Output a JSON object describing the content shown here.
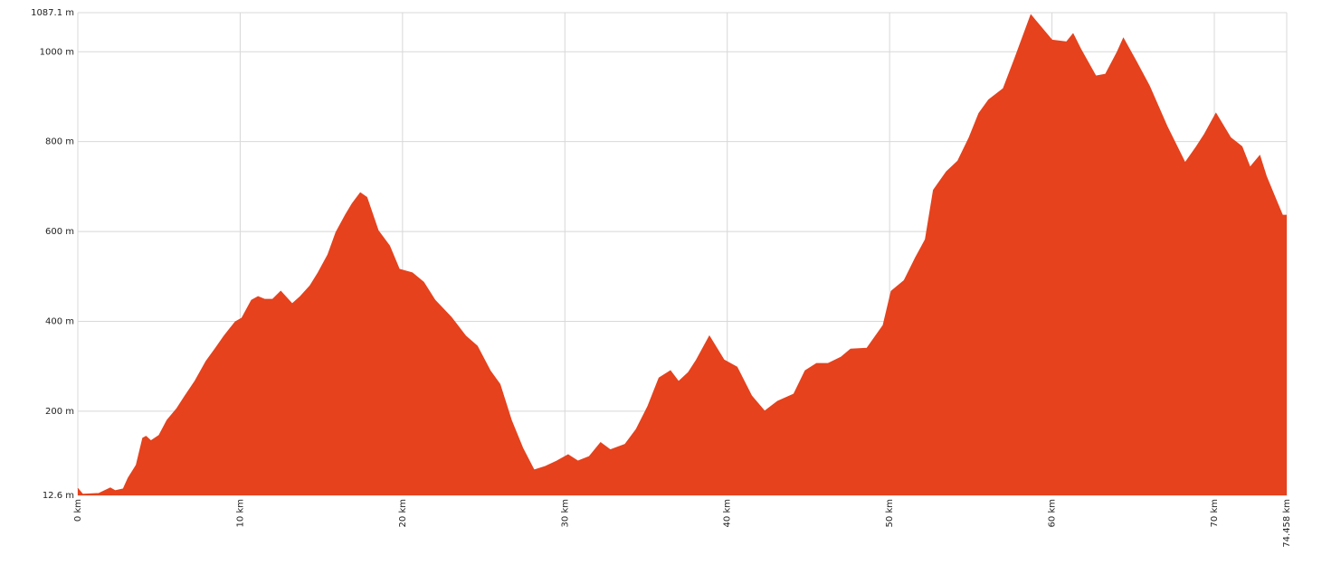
{
  "chart_data": {
    "type": "area",
    "color": "#e5421d",
    "grid": true,
    "x": [
      0,
      0.3,
      1.3,
      2.0,
      2.3,
      2.8,
      3.1,
      3.6,
      4.0,
      4.2,
      4.5,
      5.0,
      5.5,
      6.1,
      6.6,
      7.2,
      7.9,
      8.5,
      9.0,
      9.7,
      10.1,
      10.7,
      11.1,
      11.5,
      12.0,
      12.5,
      13.2,
      13.7,
      14.3,
      14.8,
      15.4,
      15.9,
      16.5,
      16.9,
      17.4,
      17.8,
      18.5,
      19.2,
      19.8,
      20.6,
      21.3,
      22.0,
      23.0,
      23.9,
      24.6,
      25.4,
      26.0,
      26.7,
      27.4,
      28.1,
      28.8,
      29.5,
      30.2,
      30.8,
      31.5,
      32.2,
      32.8,
      33.7,
      34.4,
      35.1,
      35.8,
      36.5,
      37.0,
      37.6,
      38.1,
      38.9,
      39.8,
      40.6,
      41.5,
      42.3,
      43.1,
      44.1,
      44.8,
      45.5,
      46.2,
      47.0,
      47.6,
      48.6,
      49.6,
      50.1,
      50.9,
      51.6,
      52.2,
      52.7,
      53.5,
      54.2,
      54.9,
      55.5,
      56.1,
      57.0,
      57.7,
      58.7,
      60.0,
      60.9,
      61.3,
      61.8,
      62.7,
      63.3,
      64.0,
      64.4,
      65.2,
      66.0,
      67.1,
      68.2,
      68.9,
      69.4,
      70.1,
      71.0,
      71.7,
      72.2,
      72.8,
      73.2,
      73.9,
      74.2,
      74.458
    ],
    "values": [
      28,
      15,
      17,
      29,
      23,
      27,
      51,
      80,
      140,
      144,
      134,
      146,
      180,
      206,
      234,
      266,
      311,
      341,
      367,
      399,
      407,
      447,
      455,
      449,
      449,
      467,
      439,
      455,
      479,
      508,
      548,
      598,
      638,
      662,
      686,
      676,
      602,
      568,
      516,
      508,
      487,
      447,
      409,
      367,
      345,
      290,
      260,
      180,
      118,
      69,
      77,
      89,
      103,
      89,
      99,
      130,
      114,
      126,
      160,
      210,
      274,
      290,
      266,
      286,
      314,
      367,
      314,
      298,
      234,
      200,
      222,
      238,
      290,
      306,
      306,
      320,
      338,
      340,
      391,
      467,
      491,
      542,
      582,
      692,
      733,
      757,
      809,
      863,
      893,
      918,
      984,
      1082,
      1026,
      1022,
      1040,
      1004,
      946,
      950,
      998,
      1030,
      978,
      924,
      833,
      753,
      789,
      817,
      863,
      809,
      789,
      743,
      769,
      723,
      662,
      636,
      636
    ],
    "xlim": [
      0,
      74.458
    ],
    "xticks": [
      {
        "value": 0,
        "label": "0 km"
      },
      {
        "value": 10,
        "label": "10 km"
      },
      {
        "value": 20,
        "label": "20 km"
      },
      {
        "value": 30,
        "label": "30 km"
      },
      {
        "value": 40,
        "label": "40 km"
      },
      {
        "value": 50,
        "label": "50 km"
      },
      {
        "value": 60,
        "label": "60 km"
      },
      {
        "value": 70,
        "label": "70 km"
      },
      {
        "value": 74.458,
        "label": "74.458 km"
      }
    ],
    "ylim": [
      12.6,
      1087.1
    ],
    "yticks": [
      {
        "value": 12.6,
        "label": "12.6 m"
      },
      {
        "value": 200,
        "label": "200 m"
      },
      {
        "value": 400,
        "label": "400 m"
      },
      {
        "value": 600,
        "label": "600 m"
      },
      {
        "value": 800,
        "label": "800 m"
      },
      {
        "value": 1000,
        "label": "1000 m"
      },
      {
        "value": 1087.1,
        "label": "1087.1 m"
      }
    ]
  }
}
